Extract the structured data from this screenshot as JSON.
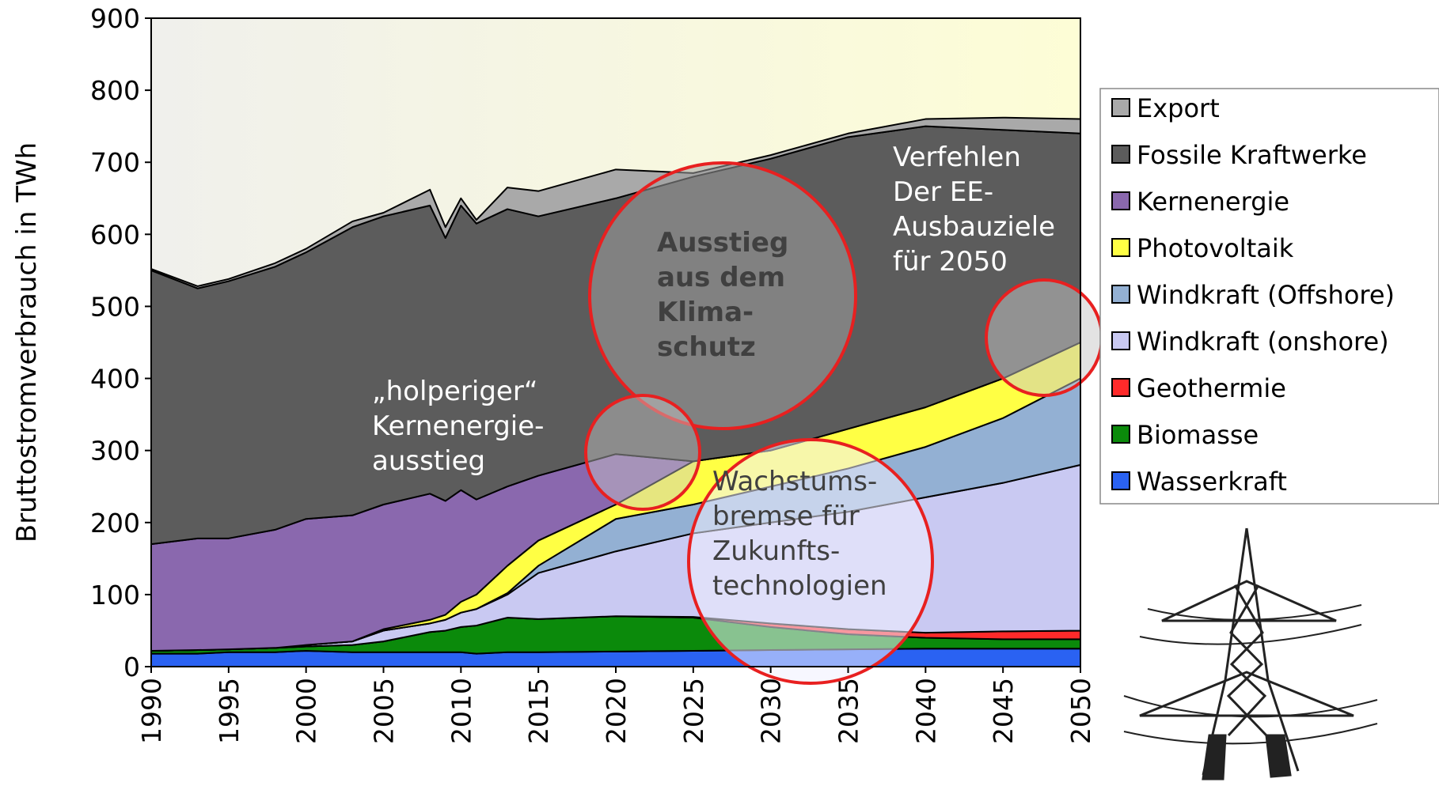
{
  "chart_data": {
    "type": "stacked_area",
    "y_label": "Bruttostromverbrauch in TWh",
    "x": [
      1990,
      1993,
      1995,
      1998,
      2000,
      2003,
      2005,
      2008,
      2009,
      2010,
      2011,
      2013,
      2015,
      2020,
      2025,
      2030,
      2035,
      2040,
      2045,
      2050
    ],
    "series": [
      {
        "name": "Wasserkraft",
        "color": "#2a62f2",
        "values": [
          18,
          18,
          20,
          20,
          22,
          20,
          20,
          20,
          20,
          20,
          18,
          20,
          20,
          21,
          22,
          23,
          24,
          25,
          25,
          25
        ]
      },
      {
        "name": "Biomasse",
        "color": "#0b8a0b",
        "values": [
          4,
          5,
          4,
          6,
          6,
          10,
          15,
          28,
          30,
          35,
          39,
          48,
          46,
          49,
          46,
          32,
          21,
          15,
          13,
          13
        ]
      },
      {
        "name": "Geothermie",
        "color": "#ff2a2a",
        "values": [
          0,
          0,
          0,
          0,
          0,
          0,
          0,
          0,
          0,
          0,
          0,
          0,
          0,
          0,
          1,
          5,
          7,
          7,
          11,
          12
        ]
      },
      {
        "name": "Windkraft (onshore)",
        "color": "#c9c9f2",
        "values": [
          0,
          0,
          0,
          0,
          2,
          5,
          15,
          12,
          15,
          20,
          23,
          32,
          64,
          90,
          116,
          140,
          163,
          188,
          206,
          230
        ]
      },
      {
        "name": "Windkraft (Offshore)",
        "color": "#93b0d3",
        "values": [
          0,
          0,
          0,
          0,
          0,
          0,
          0,
          0,
          0,
          0,
          0,
          2,
          10,
          45,
          40,
          50,
          60,
          70,
          90,
          120
        ]
      },
      {
        "name": "Photovoltaik",
        "color": "#ffff44",
        "values": [
          0,
          0,
          0,
          0,
          0,
          0,
          2,
          5,
          7,
          15,
          20,
          38,
          35,
          20,
          60,
          50,
          55,
          55,
          55,
          50
        ]
      },
      {
        "name": "Kernenergie",
        "color": "#8a68ae",
        "values": [
          148,
          155,
          154,
          164,
          175,
          175,
          173,
          175,
          158,
          155,
          132,
          110,
          90,
          70,
          0,
          0,
          0,
          0,
          0,
          0
        ]
      },
      {
        "name": "Fossile Kraftwerke",
        "color": "#5c5c5c",
        "values": [
          380,
          347,
          357,
          365,
          370,
          400,
          400,
          400,
          365,
          395,
          383,
          385,
          360,
          355,
          395,
          405,
          405,
          390,
          345,
          290
        ]
      },
      {
        "name": "Export",
        "color": "#a9a9a9",
        "values": [
          2,
          3,
          3,
          5,
          5,
          8,
          5,
          22,
          15,
          10,
          5,
          30,
          35,
          40,
          5,
          5,
          5,
          10,
          17,
          20
        ]
      }
    ],
    "xlim": [
      1990,
      2050
    ],
    "xticks": [
      1990,
      1995,
      2000,
      2005,
      2010,
      2015,
      2020,
      2025,
      2030,
      2035,
      2040,
      2045,
      2050
    ],
    "ylim": [
      0,
      900
    ],
    "yticks": [
      0,
      100,
      200,
      300,
      400,
      500,
      600,
      700,
      800,
      900
    ],
    "annotations": [
      {
        "lines": [
          "„holperiger“",
          "Kernenergie-",
          "ausstieg"
        ]
      },
      {
        "lines": [
          "Ausstieg",
          "aus dem",
          "Klima-",
          "schutz"
        ]
      },
      {
        "lines": [
          "Verfehlen",
          "Der EE-",
          "Ausbauziele",
          "für 2050"
        ]
      },
      {
        "lines": [
          "Wachstums-",
          "bremse für",
          "Zukunfts-",
          "technologien"
        ]
      }
    ]
  }
}
